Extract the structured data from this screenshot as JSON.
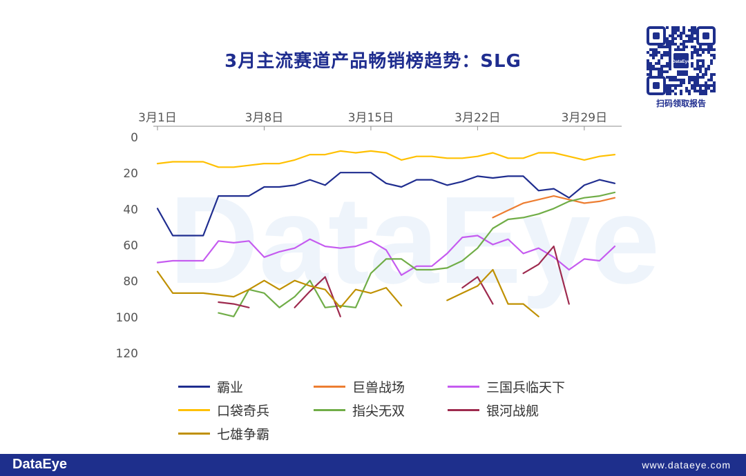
{
  "title": "3月主流赛道产品畅销榜趋势：SLG",
  "watermark": "DataEye",
  "qr": {
    "center_label": "DataEye",
    "caption": "扫码领取报告"
  },
  "footer": {
    "logo": "DataEye",
    "url": "www.dataeye.com"
  },
  "colors": {
    "title": "#1F2D8F",
    "footer_bg": "#1E2F8C",
    "axis_text": "#555555",
    "watermark": "#EEF4FB"
  },
  "chart_data": {
    "type": "line",
    "title": "3月主流赛道产品畅销榜趋势：SLG",
    "xlabel": "",
    "ylabel": "",
    "x_ticks": [
      "3月1日",
      "3月8日",
      "3月15日",
      "3月22日",
      "3月29日"
    ],
    "x_tick_days": [
      1,
      8,
      15,
      22,
      29
    ],
    "x_position": "top",
    "x_range": [
      1,
      31
    ],
    "y_inverted": true,
    "ylim": [
      0,
      120
    ],
    "y_ticks": [
      0,
      20,
      40,
      60,
      80,
      100,
      120
    ],
    "grid": false,
    "legend_position": "bottom",
    "series": [
      {
        "name": "霸业",
        "color": "#1F2D8F",
        "points": [
          [
            1,
            40
          ],
          [
            2,
            55
          ],
          [
            3,
            55
          ],
          [
            4,
            55
          ],
          [
            5,
            33
          ],
          [
            6,
            33
          ],
          [
            7,
            33
          ],
          [
            8,
            28
          ],
          [
            9,
            28
          ],
          [
            10,
            27
          ],
          [
            11,
            24
          ],
          [
            12,
            27
          ],
          [
            13,
            20
          ],
          [
            14,
            20
          ],
          [
            15,
            20
          ],
          [
            16,
            26
          ],
          [
            17,
            28
          ],
          [
            18,
            24
          ],
          [
            19,
            24
          ],
          [
            20,
            27
          ],
          [
            21,
            25
          ],
          [
            22,
            22
          ],
          [
            23,
            23
          ],
          [
            24,
            22
          ],
          [
            25,
            22
          ],
          [
            26,
            30
          ],
          [
            27,
            29
          ],
          [
            28,
            34
          ],
          [
            29,
            27
          ],
          [
            30,
            24
          ],
          [
            31,
            26
          ]
        ]
      },
      {
        "name": "巨兽战场",
        "color": "#ED7D31",
        "points": [
          [
            23,
            45
          ],
          [
            24,
            41
          ],
          [
            25,
            37
          ],
          [
            26,
            35
          ],
          [
            27,
            33
          ],
          [
            28,
            35
          ],
          [
            29,
            37
          ],
          [
            30,
            36
          ],
          [
            31,
            34
          ]
        ]
      },
      {
        "name": "三国兵临天下",
        "color": "#C55BF0",
        "points": [
          [
            1,
            70
          ],
          [
            2,
            69
          ],
          [
            3,
            69
          ],
          [
            4,
            69
          ],
          [
            5,
            58
          ],
          [
            6,
            59
          ],
          [
            7,
            58
          ],
          [
            8,
            67
          ],
          [
            9,
            64
          ],
          [
            10,
            62
          ],
          [
            11,
            57
          ],
          [
            12,
            61
          ],
          [
            13,
            62
          ],
          [
            14,
            61
          ],
          [
            15,
            58
          ],
          [
            16,
            63
          ],
          [
            17,
            77
          ],
          [
            18,
            72
          ],
          [
            19,
            72
          ],
          [
            20,
            65
          ],
          [
            21,
            56
          ],
          [
            22,
            55
          ],
          [
            23,
            60
          ],
          [
            24,
            57
          ],
          [
            25,
            65
          ],
          [
            26,
            62
          ],
          [
            27,
            67
          ],
          [
            28,
            74
          ],
          [
            29,
            68
          ],
          [
            30,
            69
          ],
          [
            31,
            61
          ]
        ]
      },
      {
        "name": "口袋奇兵",
        "color": "#FFC000",
        "points": [
          [
            1,
            15
          ],
          [
            2,
            14
          ],
          [
            3,
            14
          ],
          [
            4,
            14
          ],
          [
            5,
            17
          ],
          [
            6,
            17
          ],
          [
            7,
            16
          ],
          [
            8,
            15
          ],
          [
            9,
            15
          ],
          [
            10,
            13
          ],
          [
            11,
            10
          ],
          [
            12,
            10
          ],
          [
            13,
            8
          ],
          [
            14,
            9
          ],
          [
            15,
            8
          ],
          [
            16,
            9
          ],
          [
            17,
            13
          ],
          [
            18,
            11
          ],
          [
            19,
            11
          ],
          [
            20,
            12
          ],
          [
            21,
            12
          ],
          [
            22,
            11
          ],
          [
            23,
            9
          ],
          [
            24,
            12
          ],
          [
            25,
            12
          ],
          [
            26,
            9
          ],
          [
            27,
            9
          ],
          [
            28,
            11
          ],
          [
            29,
            13
          ],
          [
            30,
            11
          ],
          [
            31,
            10
          ]
        ]
      },
      {
        "name": "指尖无双",
        "color": "#70AD47",
        "points": [
          [
            5,
            98
          ],
          [
            6,
            100
          ],
          [
            7,
            85
          ],
          [
            8,
            87
          ],
          [
            9,
            95
          ],
          [
            10,
            89
          ],
          [
            11,
            80
          ],
          [
            12,
            95
          ],
          [
            13,
            94
          ],
          [
            14,
            95
          ],
          [
            15,
            76
          ],
          [
            16,
            68
          ],
          [
            17,
            68
          ],
          [
            18,
            74
          ],
          [
            19,
            74
          ],
          [
            20,
            73
          ],
          [
            21,
            69
          ],
          [
            22,
            62
          ],
          [
            23,
            51
          ],
          [
            24,
            46
          ],
          [
            25,
            45
          ],
          [
            26,
            43
          ],
          [
            27,
            40
          ],
          [
            28,
            36
          ],
          [
            29,
            34
          ],
          [
            30,
            33
          ],
          [
            31,
            31
          ]
        ]
      },
      {
        "name": "银河战舰",
        "color": "#9E2A4E",
        "segments": [
          [
            [
              5,
              92
            ],
            [
              6,
              93
            ],
            [
              7,
              95
            ]
          ],
          [
            [
              10,
              95
            ],
            [
              11,
              86
            ],
            [
              12,
              78
            ],
            [
              13,
              100
            ]
          ],
          [
            [
              21,
              84
            ],
            [
              22,
              78
            ],
            [
              23,
              93
            ]
          ],
          [
            [
              25,
              76
            ],
            [
              26,
              71
            ],
            [
              27,
              61
            ],
            [
              28,
              93
            ]
          ]
        ]
      },
      {
        "name": "七雄争霸",
        "color": "#BF9000",
        "segments": [
          [
            [
              1,
              75
            ],
            [
              2,
              87
            ],
            [
              3,
              87
            ],
            [
              4,
              87
            ],
            [
              5,
              88
            ],
            [
              6,
              89
            ],
            [
              7,
              85
            ],
            [
              8,
              80
            ],
            [
              9,
              85
            ],
            [
              10,
              80
            ],
            [
              11,
              83
            ],
            [
              12,
              85
            ],
            [
              13,
              95
            ],
            [
              14,
              85
            ],
            [
              15,
              87
            ],
            [
              16,
              84
            ],
            [
              17,
              94
            ]
          ],
          [
            [
              20,
              91
            ],
            [
              21,
              87
            ],
            [
              22,
              83
            ],
            [
              23,
              74
            ],
            [
              24,
              93
            ],
            [
              25,
              93
            ],
            [
              26,
              100
            ]
          ]
        ]
      }
    ]
  }
}
